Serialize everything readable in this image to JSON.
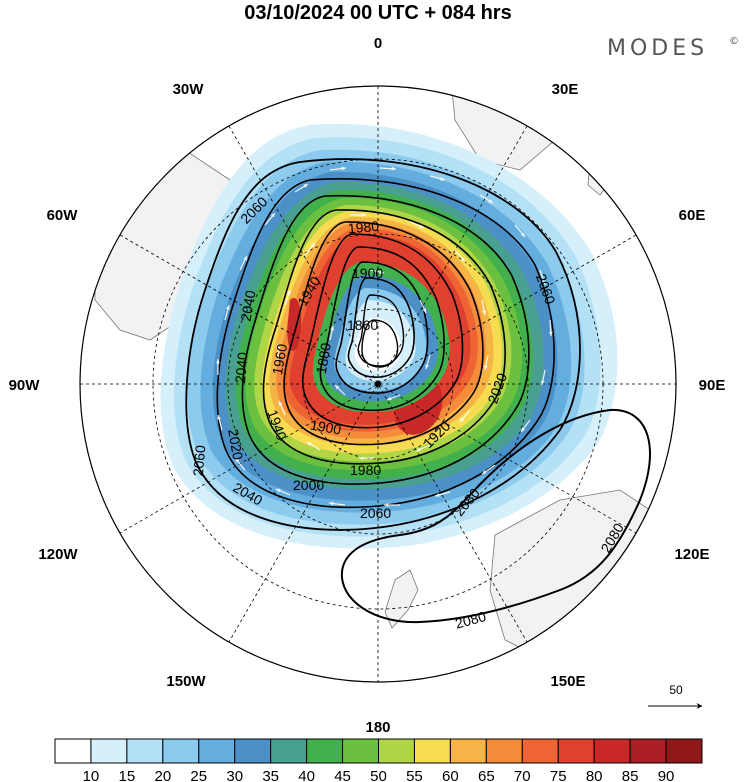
{
  "title": "03/10/2024  00 UTC  + 084 hrs",
  "brand": "MODES",
  "brand_mark": "©",
  "longitude_labels": [
    {
      "id": "0",
      "text": "0",
      "angle": 0
    },
    {
      "id": "30e",
      "text": "30E",
      "angle": 30
    },
    {
      "id": "60e",
      "text": "60E",
      "angle": 60
    },
    {
      "id": "90e",
      "text": "90E",
      "angle": 90
    },
    {
      "id": "120e",
      "text": "120E",
      "angle": 120
    },
    {
      "id": "150e",
      "text": "150E",
      "angle": 150
    },
    {
      "id": "180",
      "text": "180",
      "angle": 180
    },
    {
      "id": "150w",
      "text": "150W",
      "angle": 210
    },
    {
      "id": "120w",
      "text": "120W",
      "angle": 240
    },
    {
      "id": "90w",
      "text": "90W",
      "angle": 270
    },
    {
      "id": "60w",
      "text": "60W",
      "angle": 300
    },
    {
      "id": "30w",
      "text": "30W",
      "angle": 330
    }
  ],
  "contour_labels": [
    {
      "text": "2060"
    },
    {
      "text": "1980"
    },
    {
      "text": "1900"
    },
    {
      "text": "2060"
    },
    {
      "text": "2040"
    },
    {
      "text": "1940"
    },
    {
      "text": "1860"
    },
    {
      "text": "1880"
    },
    {
      "text": "2040"
    },
    {
      "text": "1960"
    },
    {
      "text": "1940"
    },
    {
      "text": "2020"
    },
    {
      "text": "2020"
    },
    {
      "text": "1900"
    },
    {
      "text": "1920"
    },
    {
      "text": "2060"
    },
    {
      "text": "1980"
    },
    {
      "text": "2000"
    },
    {
      "text": "2080"
    },
    {
      "text": "2040"
    },
    {
      "text": "2060"
    },
    {
      "text": "2080"
    },
    {
      "text": "2080"
    }
  ],
  "reference_vector": {
    "label": "50"
  },
  "colorbar": {
    "colors": [
      "#ffffff",
      "#d5f0fa",
      "#b4e1f6",
      "#8ccaee",
      "#64aedf",
      "#4c90c8",
      "#4aa090",
      "#42b04c",
      "#6cc040",
      "#b0d648",
      "#f6dc50",
      "#f6b446",
      "#f48c3c",
      "#ee6432",
      "#e04030",
      "#c82828",
      "#aa1e26",
      "#901818"
    ],
    "labels": [
      "10",
      "15",
      "20",
      "25",
      "30",
      "35",
      "40",
      "45",
      "50",
      "55",
      "60",
      "65",
      "70",
      "75",
      "80",
      "85",
      "90"
    ]
  }
}
